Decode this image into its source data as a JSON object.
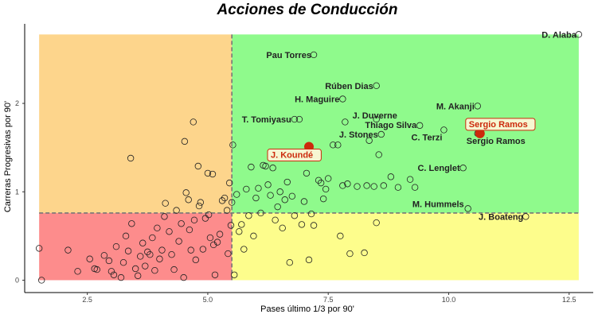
{
  "chart_data": {
    "type": "scatter",
    "title": "Acciones de Conducción",
    "xlabel": "Pases último 1/3 por 90'",
    "ylabel": "Carreras Progresivas por 90'",
    "xlim": [
      1.2,
      13.0
    ],
    "ylim": [
      -0.14,
      2.9
    ],
    "xticks": [
      2.5,
      5.0,
      7.5,
      10.0,
      12.5
    ],
    "xtick_labels": [
      "2.5",
      "5.0",
      "7.5",
      "10.0",
      "12.5"
    ],
    "yticks": [
      0,
      1,
      2
    ],
    "ytick_labels": [
      "0",
      "1",
      "2"
    ],
    "thresholds": {
      "x": 5.5,
      "y": 0.76
    },
    "data_extent": {
      "x": [
        1.5,
        12.7
      ],
      "y": [
        0,
        2.78
      ]
    },
    "colors": {
      "top_left": "#fdd58c",
      "top_right": "#8ffa8c",
      "bottom_left": "#fd8c8c",
      "bottom_right": "#fdfd8c",
      "threshold_line": "#777777",
      "highlight": "#cc2a0c"
    },
    "labeled_points": [
      {
        "name": "D. Alaba",
        "x": 12.7,
        "y": 2.78
      },
      {
        "name": "Pau Torres",
        "x": 7.2,
        "y": 2.55
      },
      {
        "name": "Rúben Dias",
        "x": 8.5,
        "y": 2.2
      },
      {
        "name": "H. Maguire",
        "x": 7.8,
        "y": 2.05
      },
      {
        "name": "M. Akanji",
        "x": 10.6,
        "y": 1.97
      },
      {
        "name": "J. Duverne",
        "x": 8.5,
        "y": 1.82
      },
      {
        "name": "T. Tomiyasu",
        "x": 6.8,
        "y": 1.82
      },
      {
        "name": "Thiago Silva",
        "x": 9.4,
        "y": 1.75
      },
      {
        "name": "J. Stones",
        "x": 8.6,
        "y": 1.65
      },
      {
        "name": "C. Terzi",
        "x": 9.9,
        "y": 1.7
      },
      {
        "name": "Sergio Ramos",
        "x": 10.6,
        "y": 1.66
      },
      {
        "name": "C. Lenglet",
        "x": 10.3,
        "y": 1.27
      },
      {
        "name": "M. Hummels",
        "x": 10.4,
        "y": 0.81
      },
      {
        "name": "J. Boateng",
        "x": 11.6,
        "y": 0.72
      }
    ],
    "highlighted_points": [
      {
        "name": "J. Koundé",
        "x": 7.1,
        "y": 1.51
      },
      {
        "name": "Sergio Ramos",
        "x": 10.65,
        "y": 1.66
      }
    ],
    "points": [
      [
        1.5,
        0.36
      ],
      [
        1.55,
        0.0
      ],
      [
        2.1,
        0.34
      ],
      [
        2.3,
        0.1
      ],
      [
        2.55,
        0.24
      ],
      [
        2.65,
        0.13
      ],
      [
        2.7,
        0.12
      ],
      [
        2.85,
        0.28
      ],
      [
        2.95,
        0.22
      ],
      [
        3.0,
        0.1
      ],
      [
        3.05,
        0.06
      ],
      [
        3.1,
        0.38
      ],
      [
        3.2,
        0.03
      ],
      [
        3.25,
        0.2
      ],
      [
        3.3,
        0.5
      ],
      [
        3.35,
        0.33
      ],
      [
        3.4,
        1.38
      ],
      [
        3.42,
        0.64
      ],
      [
        3.5,
        0.13
      ],
      [
        3.55,
        0.05
      ],
      [
        3.6,
        0.27
      ],
      [
        3.65,
        0.42
      ],
      [
        3.7,
        0.16
      ],
      [
        3.75,
        0.32
      ],
      [
        3.8,
        0.29
      ],
      [
        3.85,
        0.48
      ],
      [
        3.9,
        0.11
      ],
      [
        3.95,
        0.59
      ],
      [
        4.0,
        0.24
      ],
      [
        4.05,
        0.34
      ],
      [
        4.1,
        0.72
      ],
      [
        4.12,
        0.87
      ],
      [
        4.2,
        0.55
      ],
      [
        4.25,
        0.29
      ],
      [
        4.3,
        0.12
      ],
      [
        4.35,
        0.79
      ],
      [
        4.4,
        0.44
      ],
      [
        4.45,
        0.64
      ],
      [
        4.5,
        0.03
      ],
      [
        4.52,
        1.57
      ],
      [
        4.55,
        0.99
      ],
      [
        4.6,
        0.91
      ],
      [
        4.62,
        0.57
      ],
      [
        4.65,
        0.34
      ],
      [
        4.7,
        1.79
      ],
      [
        4.72,
        0.68
      ],
      [
        4.75,
        0.23
      ],
      [
        4.8,
        1.29
      ],
      [
        4.82,
        0.84
      ],
      [
        4.85,
        0.88
      ],
      [
        4.9,
        0.35
      ],
      [
        4.95,
        0.7
      ],
      [
        5.0,
        1.21
      ],
      [
        5.02,
        0.74
      ],
      [
        5.05,
        0.48
      ],
      [
        5.1,
        1.2
      ],
      [
        5.12,
        0.4
      ],
      [
        5.15,
        0.06
      ],
      [
        5.2,
        0.43
      ],
      [
        5.25,
        0.52
      ],
      [
        5.3,
        0.9
      ],
      [
        5.35,
        0.93
      ],
      [
        5.4,
        0.79
      ],
      [
        5.42,
        0.3
      ],
      [
        5.45,
        1.1
      ],
      [
        5.48,
        0.62
      ],
      [
        5.5,
        0.88
      ],
      [
        5.52,
        1.53
      ],
      [
        5.55,
        0.06
      ],
      [
        5.6,
        0.97
      ],
      [
        5.65,
        0.55
      ],
      [
        5.7,
        0.63
      ],
      [
        5.75,
        0.35
      ],
      [
        5.8,
        1.03
      ],
      [
        5.85,
        0.73
      ],
      [
        5.9,
        1.28
      ],
      [
        5.95,
        0.5
      ],
      [
        6.0,
        0.93
      ],
      [
        6.05,
        1.04
      ],
      [
        6.1,
        0.76
      ],
      [
        6.15,
        1.3
      ],
      [
        6.2,
        1.29
      ],
      [
        6.25,
        1.08
      ],
      [
        6.3,
        0.96
      ],
      [
        6.35,
        1.27
      ],
      [
        6.4,
        0.68
      ],
      [
        6.45,
        0.83
      ],
      [
        6.5,
        1.0
      ],
      [
        6.55,
        0.59
      ],
      [
        6.6,
        0.91
      ],
      [
        6.65,
        1.11
      ],
      [
        6.7,
        0.2
      ],
      [
        6.75,
        0.95
      ],
      [
        6.8,
        0.73
      ],
      [
        6.9,
        1.82
      ],
      [
        6.95,
        0.63
      ],
      [
        7.0,
        0.89
      ],
      [
        7.05,
        1.21
      ],
      [
        7.1,
        0.23
      ],
      [
        7.15,
        0.75
      ],
      [
        7.2,
        0.62
      ],
      [
        7.3,
        1.13
      ],
      [
        7.35,
        1.1
      ],
      [
        7.4,
        0.92
      ],
      [
        7.45,
        1.03
      ],
      [
        7.5,
        1.15
      ],
      [
        7.6,
        1.53
      ],
      [
        7.7,
        1.53
      ],
      [
        7.75,
        0.5
      ],
      [
        7.8,
        1.07
      ],
      [
        7.85,
        1.79
      ],
      [
        7.9,
        1.09
      ],
      [
        7.95,
        0.3
      ],
      [
        8.1,
        1.06
      ],
      [
        8.25,
        0.31
      ],
      [
        8.3,
        1.07
      ],
      [
        8.35,
        1.58
      ],
      [
        8.45,
        1.06
      ],
      [
        8.5,
        0.65
      ],
      [
        8.55,
        1.42
      ],
      [
        8.65,
        1.07
      ],
      [
        8.8,
        1.17
      ],
      [
        8.95,
        1.05
      ],
      [
        9.2,
        1.14
      ],
      [
        9.3,
        1.05
      ]
    ]
  }
}
